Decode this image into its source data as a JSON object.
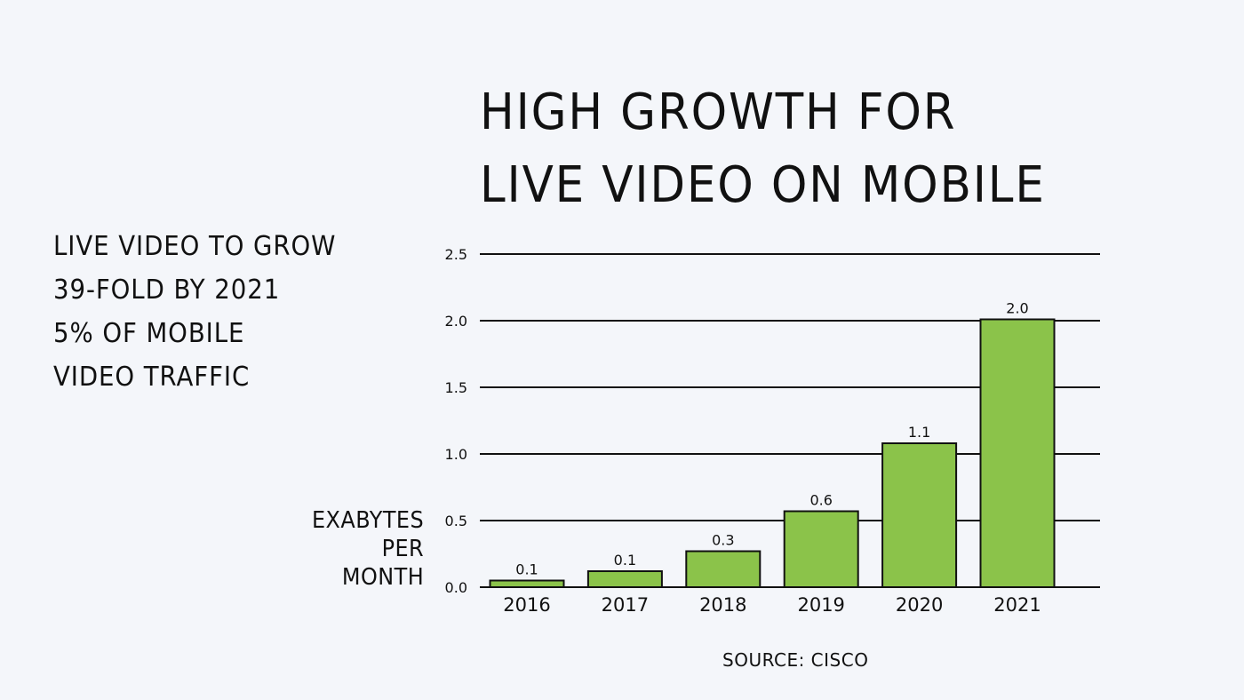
{
  "slide": {
    "title_lines": [
      "HIGH GROWTH FOR",
      "LIVE VIDEO ON MOBILE"
    ],
    "notes": [
      "LIVE VIDEO TO GROW",
      "39-FOLD BY 2021",
      "5% OF MOBILE",
      "VIDEO TRAFFIC"
    ],
    "source": "SOURCE: CISCO"
  },
  "chart_data": {
    "type": "bar",
    "title": "",
    "ylabel_lines": [
      "EXABYTES",
      "PER",
      "MONTH"
    ],
    "xlabel": "",
    "categories": [
      "2016",
      "2017",
      "2018",
      "2019",
      "2020",
      "2021"
    ],
    "values": [
      0.05,
      0.12,
      0.27,
      0.57,
      1.08,
      2.01
    ],
    "data_labels": [
      "0.1",
      "0.1",
      "0.3",
      "0.6",
      "1.1",
      "2.0"
    ],
    "ylim": [
      0,
      2.5
    ],
    "yticks": [
      0.0,
      0.5,
      1.0,
      1.5,
      2.0,
      2.5
    ],
    "ytick_labels": [
      "0.0",
      "0.5",
      "1.0",
      "1.5",
      "2.0",
      "2.5"
    ],
    "grid": true,
    "legend": "none",
    "bar_color": "#8bc34a",
    "bar_stroke": "#111111"
  }
}
